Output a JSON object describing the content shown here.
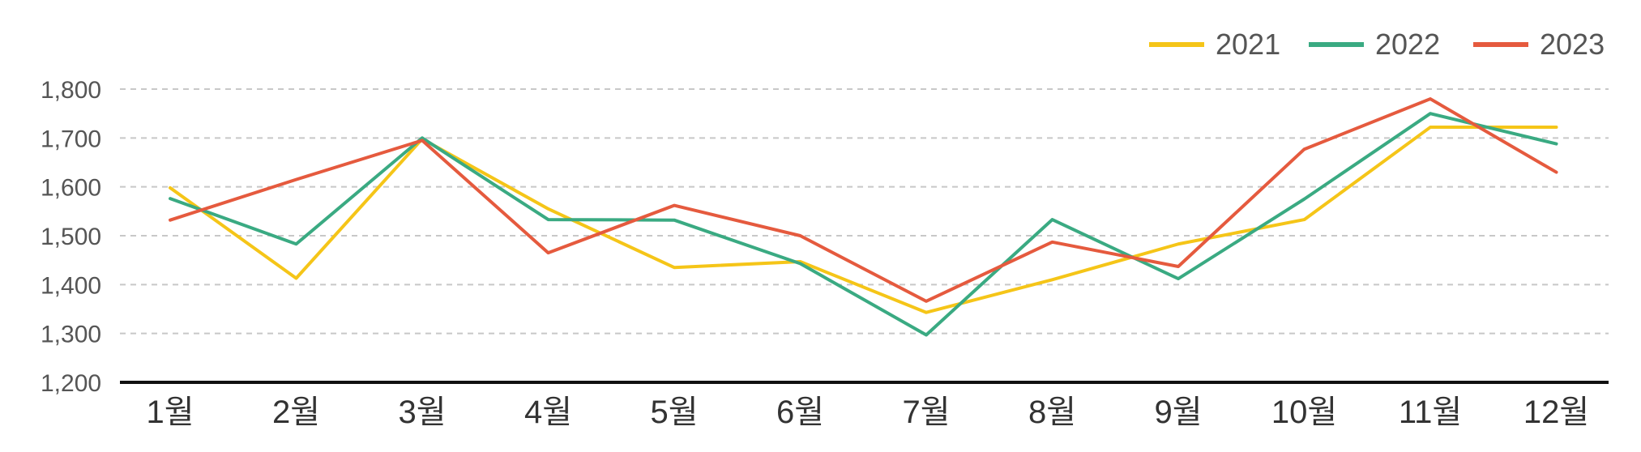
{
  "chart_data": {
    "type": "line",
    "categories": [
      "1월",
      "2월",
      "3월",
      "4월",
      "5월",
      "6월",
      "7월",
      "8월",
      "9월",
      "10월",
      "11월",
      "12월"
    ],
    "series": [
      {
        "name": "2021",
        "color": "#F5C518",
        "values": [
          1598,
          1413,
          1698,
          1555,
          1435,
          1447,
          1343,
          1410,
          1483,
          1533,
          1722,
          1722
        ]
      },
      {
        "name": "2022",
        "color": "#3AAA82",
        "values": [
          1576,
          1483,
          1700,
          1533,
          1532,
          1443,
          1297,
          1533,
          1412,
          1575,
          1750,
          1688
        ]
      },
      {
        "name": "2023",
        "color": "#E55A3E",
        "values": [
          1532,
          1615,
          1695,
          1465,
          1562,
          1500,
          1366,
          1487,
          1437,
          1677,
          1780,
          1630
        ]
      }
    ],
    "ylim": [
      1200,
      1800
    ],
    "yticks": [
      "1,200",
      "1,300",
      "1,400",
      "1,500",
      "1,600",
      "1,700",
      "1,800"
    ],
    "grid": true,
    "legend": "top-right"
  }
}
